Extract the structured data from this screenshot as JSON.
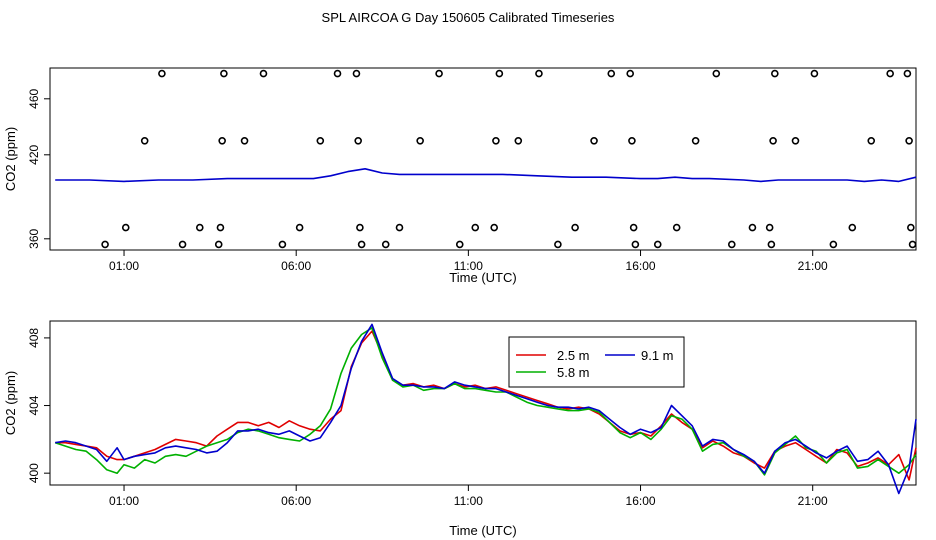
{
  "title": "SPL AIRCOA G  Day 150605  Calibrated Timeseries",
  "colors": {
    "red": "#e00000",
    "green": "#00b000",
    "blue": "#0000cc",
    "axis": "#000000"
  },
  "chart_data": [
    {
      "type": "scatter",
      "title": "SPL AIRCOA G  Day 150605  Calibrated Timeseries",
      "xlabel": "Time (UTC)",
      "ylabel": "CO2 (ppm)",
      "xlim": [
        -1.15,
        24.0
      ],
      "ylim": [
        352,
        482
      ],
      "xticks": [
        1,
        6,
        11,
        16,
        21
      ],
      "xtick_labels": [
        "01:00",
        "06:00",
        "11:00",
        "16:00",
        "21:00"
      ],
      "yticks": [
        360,
        420,
        460
      ],
      "ytick_labels": [
        "360",
        "420",
        "460"
      ],
      "points": [
        [
          0.45,
          356
        ],
        [
          1.05,
          368
        ],
        [
          1.6,
          430
        ],
        [
          2.1,
          478
        ],
        [
          2.7,
          356
        ],
        [
          3.2,
          368
        ],
        [
          3.75,
          356
        ],
        [
          3.8,
          368
        ],
        [
          3.85,
          430
        ],
        [
          3.9,
          478
        ],
        [
          4.5,
          430
        ],
        [
          5.05,
          478
        ],
        [
          5.6,
          356
        ],
        [
          6.1,
          368
        ],
        [
          6.7,
          430
        ],
        [
          7.2,
          478
        ],
        [
          7.75,
          478
        ],
        [
          7.8,
          430
        ],
        [
          7.85,
          368
        ],
        [
          7.9,
          356
        ],
        [
          8.6,
          356
        ],
        [
          9.0,
          368
        ],
        [
          9.6,
          430
        ],
        [
          10.15,
          478
        ],
        [
          10.75,
          356
        ],
        [
          11.2,
          368
        ],
        [
          11.75,
          368
        ],
        [
          11.8,
          430
        ],
        [
          11.9,
          478
        ],
        [
          12.45,
          430
        ],
        [
          13.05,
          478
        ],
        [
          13.6,
          356
        ],
        [
          14.1,
          368
        ],
        [
          14.65,
          430
        ],
        [
          15.15,
          478
        ],
        [
          15.7,
          478
        ],
        [
          15.75,
          430
        ],
        [
          15.8,
          368
        ],
        [
          15.85,
          356
        ],
        [
          16.5,
          356
        ],
        [
          17.05,
          368
        ],
        [
          17.6,
          430
        ],
        [
          18.2,
          478
        ],
        [
          18.65,
          356
        ],
        [
          19.25,
          368
        ],
        [
          19.75,
          368
        ],
        [
          19.8,
          356
        ],
        [
          19.85,
          430
        ],
        [
          19.9,
          478
        ],
        [
          20.5,
          430
        ],
        [
          21.05,
          478
        ],
        [
          21.6,
          356
        ],
        [
          22.15,
          368
        ],
        [
          22.7,
          430
        ],
        [
          23.25,
          478
        ],
        [
          23.75,
          478
        ],
        [
          23.8,
          430
        ],
        [
          23.85,
          368
        ],
        [
          23.9,
          356
        ]
      ],
      "series": [
        {
          "name": "blue",
          "color": "#0000cc",
          "x": [
            -1,
            0,
            1,
            2,
            3,
            4,
            5,
            6,
            6.5,
            7,
            7.5,
            8,
            8.5,
            9,
            10,
            11,
            12,
            13,
            14,
            15,
            16,
            16.5,
            17,
            17.5,
            18,
            19,
            19.5,
            20,
            21,
            22,
            22.5,
            23,
            23.5,
            24
          ],
          "y": [
            402,
            402,
            401,
            402,
            402,
            403,
            403,
            403,
            403,
            405,
            408,
            410,
            407,
            406,
            406,
            406,
            406,
            405,
            404,
            404,
            403,
            403,
            404,
            403,
            403,
            402,
            401,
            402,
            402,
            402,
            401,
            402,
            401,
            404
          ]
        }
      ]
    },
    {
      "type": "line",
      "xlabel": "Time (UTC)",
      "ylabel": "CO2 (ppm)",
      "xlim": [
        -1.15,
        24.0
      ],
      "ylim": [
        399.3,
        409.0
      ],
      "xticks": [
        1,
        6,
        11,
        16,
        21
      ],
      "xtick_labels": [
        "01:00",
        "06:00",
        "11:00",
        "16:00",
        "21:00"
      ],
      "yticks": [
        400,
        404,
        408
      ],
      "ytick_labels": [
        "400",
        "404",
        "408"
      ],
      "legend": {
        "position": "top-center",
        "entries": [
          "2.5 m",
          "5.8 m",
          "9.1 m"
        ]
      },
      "series": [
        {
          "name": "2.5 m",
          "color": "#e00000",
          "x": [
            -1,
            -0.7,
            -0.4,
            -0.1,
            0.2,
            0.5,
            0.8,
            1.0,
            1.3,
            1.6,
            1.9,
            2.2,
            2.5,
            2.8,
            3.1,
            3.4,
            3.7,
            4.0,
            4.3,
            4.6,
            4.9,
            5.2,
            5.5,
            5.8,
            6.1,
            6.4,
            6.7,
            7.0,
            7.3,
            7.6,
            7.9,
            8.2,
            8.5,
            8.8,
            9.1,
            9.4,
            9.7,
            10.0,
            10.3,
            10.6,
            10.9,
            11.2,
            11.5,
            11.8,
            12.1,
            12.4,
            12.7,
            13.0,
            13.3,
            13.6,
            13.9,
            14.2,
            14.5,
            14.8,
            15.1,
            15.4,
            15.7,
            16.0,
            16.3,
            16.6,
            16.9,
            17.2,
            17.5,
            17.8,
            18.1,
            18.4,
            18.7,
            19.0,
            19.3,
            19.6,
            19.9,
            20.2,
            20.5,
            20.8,
            21.1,
            21.4,
            21.7,
            22.0,
            22.3,
            22.6,
            22.9,
            23.2,
            23.5,
            23.8,
            24.0
          ],
          "y": [
            401.8,
            401.8,
            401.7,
            401.6,
            401.5,
            401.0,
            400.8,
            400.8,
            401.0,
            401.2,
            401.4,
            401.7,
            402.0,
            401.9,
            401.8,
            401.6,
            402.2,
            402.6,
            403.0,
            403.0,
            402.8,
            403.0,
            402.7,
            403.1,
            402.8,
            402.6,
            402.5,
            403.2,
            403.7,
            406.3,
            407.7,
            408.4,
            407.0,
            405.5,
            405.2,
            405.3,
            405.1,
            405.2,
            405.0,
            405.3,
            405.1,
            405.2,
            405.0,
            405.1,
            404.9,
            404.7,
            404.5,
            404.3,
            404.1,
            403.9,
            403.8,
            403.9,
            403.8,
            403.5,
            403.0,
            402.5,
            402.3,
            402.4,
            402.2,
            402.8,
            403.5,
            403.0,
            402.6,
            401.5,
            401.9,
            401.6,
            401.2,
            401.0,
            400.6,
            400.3,
            401.3,
            401.6,
            401.8,
            401.4,
            401.0,
            400.6,
            401.4,
            401.2,
            400.4,
            400.6,
            400.9,
            400.5,
            401.1,
            399.6,
            401.5
          ]
        },
        {
          "name": "5.8 m",
          "color": "#00b000",
          "x": [
            -1,
            -0.7,
            -0.4,
            -0.1,
            0.2,
            0.5,
            0.8,
            1.0,
            1.3,
            1.6,
            1.9,
            2.2,
            2.5,
            2.8,
            3.1,
            3.4,
            3.7,
            4.0,
            4.3,
            4.6,
            4.9,
            5.2,
            5.5,
            5.8,
            6.1,
            6.4,
            6.7,
            7.0,
            7.3,
            7.6,
            7.9,
            8.2,
            8.5,
            8.8,
            9.1,
            9.4,
            9.7,
            10.0,
            10.3,
            10.6,
            10.9,
            11.2,
            11.5,
            11.8,
            12.1,
            12.4,
            12.7,
            13.0,
            13.3,
            13.6,
            13.9,
            14.2,
            14.5,
            14.8,
            15.1,
            15.4,
            15.7,
            16.0,
            16.3,
            16.6,
            16.9,
            17.2,
            17.5,
            17.8,
            18.1,
            18.4,
            18.7,
            19.0,
            19.3,
            19.6,
            19.9,
            20.2,
            20.5,
            20.8,
            21.1,
            21.4,
            21.7,
            22.0,
            22.3,
            22.6,
            22.9,
            23.2,
            23.5,
            23.8,
            24.0
          ],
          "y": [
            401.8,
            401.6,
            401.4,
            401.3,
            400.8,
            400.2,
            400.0,
            400.5,
            400.3,
            400.8,
            400.6,
            401.0,
            401.1,
            401.0,
            401.3,
            401.6,
            401.8,
            402.0,
            402.4,
            402.6,
            402.5,
            402.3,
            402.1,
            402.0,
            401.9,
            402.3,
            402.8,
            403.8,
            405.9,
            407.4,
            408.2,
            408.6,
            406.8,
            405.5,
            405.1,
            405.2,
            404.9,
            405.0,
            405.0,
            405.3,
            405.0,
            405.0,
            404.9,
            404.8,
            404.8,
            404.5,
            404.2,
            404.0,
            403.9,
            403.8,
            403.7,
            403.7,
            403.8,
            403.6,
            403.0,
            402.4,
            402.1,
            402.4,
            402.0,
            402.6,
            403.4,
            403.2,
            402.6,
            401.3,
            401.7,
            401.8,
            401.4,
            401.0,
            400.7,
            399.9,
            401.2,
            401.7,
            402.2,
            401.5,
            401.3,
            400.6,
            401.2,
            401.4,
            400.3,
            400.4,
            400.8,
            400.4,
            400.0,
            400.5,
            401.1
          ]
        },
        {
          "name": "9.1 m",
          "color": "#0000cc",
          "x": [
            -1,
            -0.7,
            -0.4,
            -0.1,
            0.2,
            0.5,
            0.8,
            1.0,
            1.3,
            1.6,
            1.9,
            2.2,
            2.5,
            2.8,
            3.1,
            3.4,
            3.7,
            4.0,
            4.3,
            4.6,
            4.9,
            5.2,
            5.5,
            5.8,
            6.1,
            6.4,
            6.7,
            7.0,
            7.3,
            7.6,
            7.9,
            8.2,
            8.5,
            8.8,
            9.1,
            9.4,
            9.7,
            10.0,
            10.3,
            10.6,
            10.9,
            11.2,
            11.5,
            11.8,
            12.1,
            12.4,
            12.7,
            13.0,
            13.3,
            13.6,
            13.9,
            14.2,
            14.5,
            14.8,
            15.1,
            15.4,
            15.7,
            16.0,
            16.3,
            16.6,
            16.9,
            17.2,
            17.5,
            17.8,
            18.1,
            18.4,
            18.7,
            19.0,
            19.3,
            19.6,
            19.9,
            20.2,
            20.5,
            20.8,
            21.1,
            21.4,
            21.7,
            22.0,
            22.3,
            22.6,
            22.9,
            23.2,
            23.5,
            23.8,
            24.0
          ],
          "y": [
            401.8,
            401.9,
            401.8,
            401.6,
            401.4,
            400.7,
            401.5,
            400.8,
            401.0,
            401.1,
            401.2,
            401.5,
            401.6,
            401.5,
            401.4,
            401.2,
            401.3,
            401.8,
            402.5,
            402.5,
            402.6,
            402.4,
            402.3,
            402.5,
            402.2,
            401.9,
            402.1,
            403.0,
            404.0,
            406.2,
            407.8,
            408.8,
            407.1,
            405.6,
            405.2,
            405.2,
            405.1,
            405.1,
            405.0,
            405.4,
            405.2,
            405.1,
            405.0,
            405.0,
            404.8,
            404.6,
            404.4,
            404.2,
            404.0,
            403.9,
            403.9,
            403.8,
            403.9,
            403.7,
            403.2,
            402.7,
            402.3,
            402.6,
            402.4,
            402.7,
            404.0,
            403.4,
            402.8,
            401.6,
            402.0,
            401.9,
            401.4,
            401.1,
            400.7,
            400.0,
            401.3,
            401.8,
            402.0,
            401.6,
            401.2,
            400.9,
            401.3,
            401.6,
            400.7,
            400.8,
            401.3,
            400.5,
            398.8,
            400.3,
            403.2
          ]
        }
      ]
    }
  ]
}
